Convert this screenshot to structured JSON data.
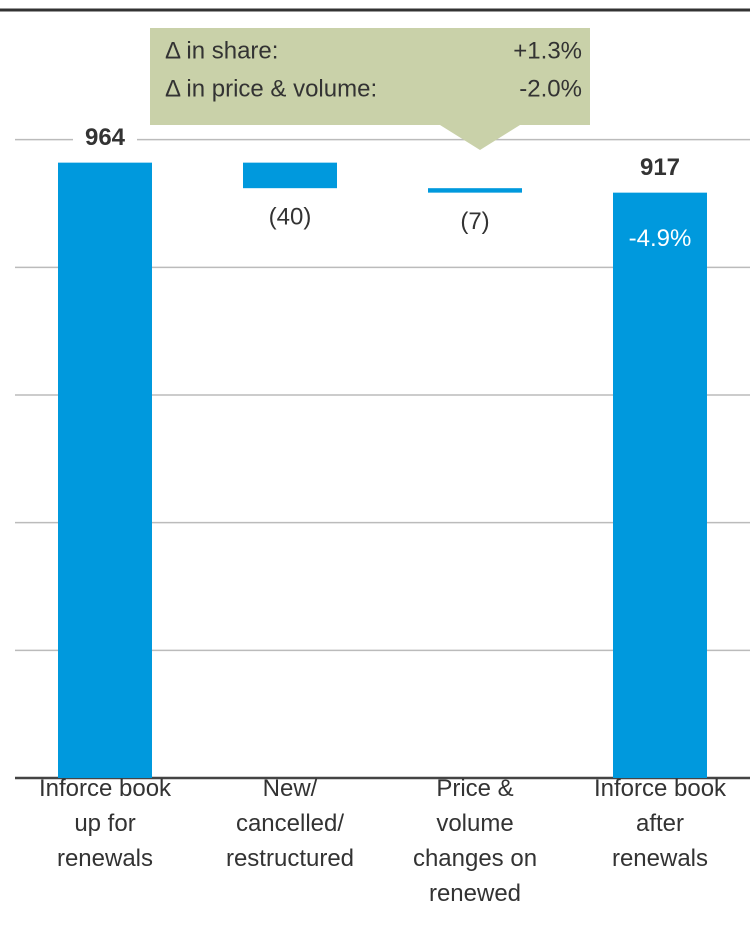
{
  "chart_data": {
    "type": "waterfall",
    "categories": [
      "Inforce book\nup for\nrenewals",
      "New/\ncancelled/\nrestructured",
      "Price &\nvolume\nchanges on\nrenewed",
      "Inforce book\nafter\nrenewals"
    ],
    "values": [
      964,
      -40,
      -7,
      917
    ],
    "value_labels": [
      "964",
      "(40)",
      "(7)",
      "917"
    ],
    "measures": [
      "absolute",
      "relative",
      "relative",
      "total"
    ],
    "color": "#0099dd",
    "ylim": [
      0,
      1200
    ],
    "yticks": [
      0,
      200,
      400,
      600,
      800,
      1000
    ],
    "grid": true,
    "annotation": "-4.9%",
    "callout": {
      "rows": [
        {
          "label": "Δ in share:",
          "value": "+1.3%"
        },
        {
          "label": "Δ in price & volume:",
          "value": "-2.0%"
        }
      ],
      "color": "#c9d1a9"
    }
  }
}
